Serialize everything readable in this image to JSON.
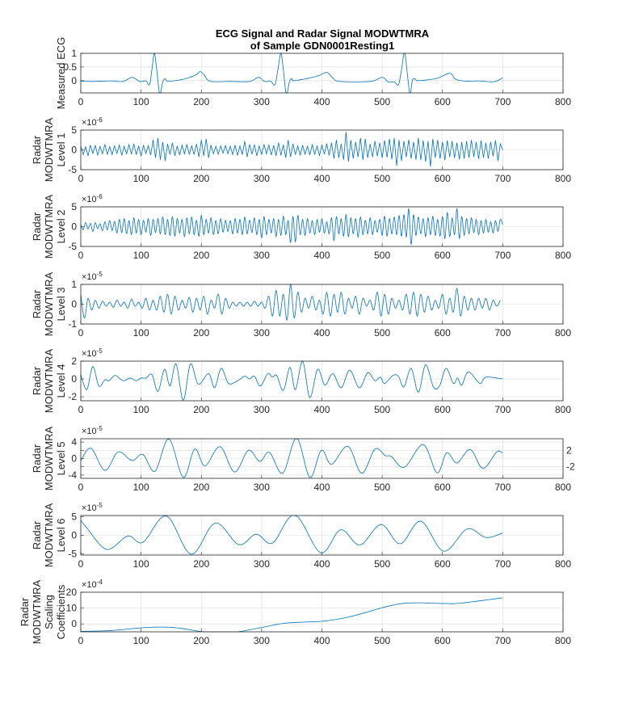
{
  "figure": {
    "title_line1": "ECG Signal and Radar Signal MODWTMRA",
    "title_line2": "of Sample GDN0001Resting1",
    "line_color": "#0072BD",
    "grid": true
  },
  "chart_data": [
    {
      "type": "line",
      "ylabel": [
        "Measured ECG"
      ],
      "exponent": null,
      "xlim": [
        0,
        800
      ],
      "xticks": [
        0,
        100,
        200,
        300,
        400,
        500,
        600,
        700,
        800
      ],
      "ylim": [
        -0.45,
        1
      ],
      "yticks": [
        0,
        0.5,
        1
      ],
      "smooth": true,
      "x": [
        0,
        20,
        50,
        70,
        85,
        98,
        108,
        114,
        118,
        122,
        126,
        131,
        136,
        140,
        145,
        170,
        190,
        198,
        205,
        215,
        250,
        280,
        295,
        305,
        315,
        322,
        327,
        332,
        336,
        341,
        346,
        350,
        355,
        390,
        408,
        418,
        430,
        480,
        500,
        510,
        520,
        527,
        532,
        537,
        541,
        546,
        550,
        554,
        560,
        590,
        612,
        622,
        640,
        660,
        685,
        700
      ],
      "y": [
        -0.02,
        -0.03,
        -0.01,
        -0.03,
        0.12,
        -0.03,
        -0.01,
        -0.15,
        0.4,
        1.0,
        0.4,
        -0.5,
        -0.05,
        0.07,
        -0.02,
        0.05,
        0.2,
        0.33,
        0.2,
        -0.02,
        -0.03,
        -0.03,
        0.12,
        -0.03,
        -0.02,
        -0.15,
        0.4,
        1.0,
        0.4,
        -0.5,
        -0.05,
        0.07,
        0.0,
        0.15,
        0.3,
        0.1,
        -0.03,
        -0.03,
        0.12,
        -0.05,
        -0.05,
        -0.15,
        0.4,
        1.05,
        0.4,
        -0.5,
        0.0,
        0.07,
        0.0,
        0.08,
        0.27,
        0.05,
        -0.02,
        -0.01,
        -0.04,
        0.1
      ]
    },
    {
      "type": "line",
      "ylabel": [
        "Radar",
        "MODWTMRA",
        "Level 1"
      ],
      "exponent": -6,
      "xlim": [
        0,
        800
      ],
      "xticks": [
        0,
        100,
        200,
        300,
        400,
        500,
        600,
        700,
        800
      ],
      "ylim": [
        -5,
        5
      ],
      "yticks": [
        -5,
        0,
        5
      ],
      "smooth": false,
      "x_start": 0,
      "x_step": 4,
      "y": [
        1.0,
        -1.2,
        0.8,
        -1.5,
        1.2,
        -0.9,
        1.1,
        -1.3,
        0.9,
        -1.0,
        1.4,
        -1.1,
        0.8,
        -1.2,
        1.0,
        -0.9,
        1.2,
        -1.4,
        0.9,
        -1.0,
        1.3,
        -1.1,
        1.5,
        -1.2,
        1.0,
        -1.6,
        1.2,
        -0.9,
        1.1,
        -1.3,
        2.5,
        -2.0,
        3.0,
        -2.5,
        2.0,
        -2.8,
        1.5,
        -1.2,
        1.8,
        -1.5,
        1.0,
        -1.3,
        1.2,
        -1.0,
        1.4,
        -1.1,
        1.0,
        -1.2,
        1.5,
        -1.8,
        2.5,
        -1.5,
        2.8,
        -2.0,
        1.2,
        -1.0,
        0.9,
        -1.1,
        1.0,
        -0.8,
        1.1,
        -1.0,
        0.9,
        -1.2,
        1.2,
        -1.4,
        1.0,
        -1.2,
        2.2,
        -1.8,
        1.4,
        -1.1,
        1.3,
        -1.5,
        1.0,
        -1.2,
        1.4,
        -1.0,
        1.2,
        -1.3,
        1.1,
        -1.5,
        1.8,
        -1.4,
        1.3,
        -2.0,
        2.5,
        -1.8,
        1.5,
        -1.2,
        1.0,
        -1.4,
        1.2,
        -1.1,
        0.9,
        -1.3,
        1.4,
        -1.2,
        1.0,
        -1.5,
        1.3,
        -1.1,
        1.6,
        -1.4,
        1.8,
        -2.2,
        2.5,
        -2.0,
        1.5,
        -2.5,
        4.5,
        -3.0,
        2.5,
        -2.2,
        2.0,
        -1.8,
        3.0,
        -2.5,
        2.8,
        -2.0,
        1.5,
        -1.8,
        2.2,
        -1.6,
        1.8,
        -2.0,
        2.4,
        -1.9,
        2.8,
        -2.4,
        3.0,
        -4.0,
        2.5,
        -2.8,
        2.2,
        -1.8,
        2.6,
        -2.2,
        2.0,
        -2.5,
        3.0,
        -2.6,
        2.4,
        -3.0,
        2.2,
        -4.2,
        2.8,
        -2.0,
        2.5,
        -2.2,
        2.0,
        -2.6,
        2.4,
        -1.8,
        2.2,
        -2.0,
        1.8,
        -2.4,
        2.0,
        -2.2,
        2.2,
        -2.0,
        2.5,
        -1.8,
        2.0,
        -2.3,
        2.4,
        -2.0,
        1.8,
        -2.2,
        2.0,
        -1.6,
        2.4,
        -2.8,
        1.5,
        0.0
      ]
    },
    {
      "type": "line",
      "ylabel": [
        "Radar",
        "MODWTMRA",
        "Level 2"
      ],
      "exponent": -6,
      "xlim": [
        0,
        800
      ],
      "xticks": [
        0,
        100,
        200,
        300,
        400,
        500,
        600,
        700,
        800
      ],
      "ylim": [
        -5,
        5
      ],
      "yticks": [
        -5,
        0,
        5
      ],
      "smooth": true,
      "x_start": 0,
      "x_step": 4,
      "y": [
        0.5,
        -0.8,
        1.0,
        -0.6,
        0.8,
        -1.2,
        1.0,
        -0.5,
        0.7,
        -1.0,
        1.2,
        -0.8,
        1.5,
        -1.0,
        1.3,
        -1.6,
        1.8,
        -1.5,
        2.0,
        -1.8,
        1.5,
        -2.0,
        2.2,
        -1.6,
        1.8,
        -2.0,
        1.6,
        -1.4,
        2.0,
        -2.2,
        1.8,
        -1.5,
        2.0,
        -1.8,
        2.4,
        -2.0,
        1.8,
        -2.2,
        2.5,
        -2.4,
        2.0,
        -1.6,
        1.8,
        -2.5,
        2.2,
        -1.8,
        2.4,
        -2.0,
        1.6,
        -2.4,
        2.8,
        -2.0,
        1.8,
        -1.6,
        2.2,
        -2.0,
        1.5,
        -1.8,
        2.0,
        -1.4,
        1.6,
        -1.2,
        1.5,
        -1.8,
        2.0,
        -1.6,
        1.8,
        -2.0,
        2.4,
        -1.8,
        1.6,
        -1.5,
        2.2,
        -2.0,
        1.8,
        -2.8,
        2.5,
        -2.0,
        1.8,
        -1.6,
        2.0,
        -2.5,
        1.8,
        -2.2,
        2.6,
        -2.0,
        1.5,
        -4.0,
        2.5,
        -3.8,
        2.8,
        -2.0,
        1.8,
        -2.2,
        2.0,
        -1.6,
        1.5,
        -2.0,
        1.8,
        -1.4,
        2.0,
        -1.6,
        1.2,
        -1.8,
        2.2,
        -3.5,
        2.5,
        -1.8,
        2.0,
        -2.4,
        3.0,
        -2.5,
        2.2,
        -1.8,
        2.0,
        -2.6,
        2.4,
        -2.0,
        1.6,
        -1.8,
        2.2,
        -2.0,
        1.5,
        -1.4,
        1.8,
        -2.2,
        2.6,
        -2.4,
        2.0,
        -1.8,
        2.4,
        -2.0,
        2.8,
        -2.4,
        3.0,
        -2.6,
        4.5,
        -4.5,
        3.0,
        -2.2,
        2.4,
        -1.8,
        2.0,
        -2.5,
        2.2,
        -2.0,
        2.6,
        -2.2,
        1.8,
        -2.4,
        2.5,
        -3.0,
        3.5,
        -2.5,
        2.2,
        -2.0,
        4.5,
        -3.0,
        2.5,
        -2.2,
        2.0,
        -1.8,
        2.2,
        -1.5,
        1.8,
        -2.0,
        1.5,
        -1.6,
        1.8,
        -1.4,
        1.2,
        -1.6,
        1.5,
        -1.2,
        1.8,
        0.5
      ]
    },
    {
      "type": "line",
      "ylabel": [
        "Radar",
        "MODWTMRA",
        "Level 3"
      ],
      "exponent": -5,
      "xlim": [
        0,
        800
      ],
      "xticks": [
        0,
        100,
        200,
        300,
        400,
        500,
        600,
        700,
        800
      ],
      "ylim": [
        -1,
        1
      ],
      "yticks": [
        -1,
        0,
        1
      ],
      "smooth": true,
      "x_start": 0,
      "x_step": 6,
      "y": [
        0.5,
        -0.7,
        0.3,
        -0.3,
        0.2,
        -0.2,
        0.15,
        -0.1,
        0.1,
        -0.15,
        0.2,
        -0.1,
        0.1,
        -0.2,
        0.25,
        -0.1,
        0.1,
        -0.2,
        0.3,
        -0.3,
        0.2,
        -0.3,
        0.4,
        -0.4,
        0.5,
        -0.5,
        0.4,
        -0.3,
        0.2,
        -0.2,
        0.35,
        -0.4,
        0.3,
        -0.3,
        0.4,
        -0.5,
        0.2,
        -0.2,
        0.5,
        -0.5,
        0.3,
        -0.2,
        0.1,
        -0.1,
        0.1,
        -0.1,
        0.1,
        -0.1,
        0.15,
        -0.1,
        0.1,
        -0.2,
        0.4,
        -0.6,
        0.7,
        -0.6,
        0.5,
        -0.8,
        1.0,
        -0.7,
        0.6,
        -0.4,
        0.3,
        -0.2,
        0.4,
        -0.3,
        0.2,
        -0.5,
        0.6,
        -0.6,
        0.5,
        -0.4,
        0.6,
        -0.5,
        0.3,
        -0.2,
        0.4,
        -0.5,
        0.3,
        -0.1,
        0.2,
        -0.3,
        0.6,
        -0.6,
        0.5,
        -0.5,
        0.3,
        -0.2,
        0.2,
        -0.3,
        0.5,
        -0.5,
        0.6,
        -0.6,
        0.5,
        -0.4,
        0.4,
        -0.3,
        0.2,
        -0.2,
        0.5,
        -0.5,
        0.3,
        -0.4,
        0.8,
        -0.6,
        0.4,
        -0.3,
        0.3,
        -0.3,
        0.3,
        -0.2,
        0.3,
        -0.3,
        0.2,
        -0.1,
        0.2,
        0.3
      ]
    },
    {
      "type": "line",
      "ylabel": [
        "Radar",
        "MODWTMRA",
        "Level 4"
      ],
      "exponent": -5,
      "xlim": [
        0,
        800
      ],
      "xticks": [
        0,
        100,
        200,
        300,
        400,
        500,
        600,
        700,
        800
      ],
      "ylim": [
        -2.45,
        2
      ],
      "yticks": [
        -2,
        0,
        2
      ],
      "smooth": true,
      "x": [
        0,
        10,
        20,
        30,
        40,
        47,
        57,
        70,
        82,
        92,
        100,
        108,
        118,
        128,
        139,
        148,
        158,
        170,
        182,
        195,
        212,
        222,
        233,
        245,
        260,
        272,
        280,
        288,
        298,
        310,
        318,
        325,
        336,
        347,
        356,
        368,
        380,
        393,
        405,
        418,
        432,
        446,
        462,
        476,
        488,
        497,
        504,
        518,
        527,
        536,
        548,
        560,
        572,
        585,
        595,
        606,
        618,
        625,
        632,
        643,
        662,
        672,
        700
      ],
      "y": [
        0.5,
        -1.2,
        1.4,
        -0.8,
        -0.1,
        -0.2,
        0.4,
        -0.2,
        0.1,
        -0.2,
        0.1,
        0.1,
        0.5,
        -1.4,
        1.1,
        -0.8,
        1.7,
        -2.4,
        1.7,
        -0.6,
        0.6,
        -1.0,
        1.2,
        -0.5,
        -0.2,
        0.3,
        0.0,
        0.3,
        -0.8,
        0.6,
        0.2,
        0.4,
        -1.3,
        1.3,
        -1.2,
        2.0,
        -2.1,
        1.1,
        -0.7,
        0.6,
        -1.0,
        1.0,
        -1.0,
        0.7,
        -0.2,
        0.2,
        -0.5,
        0.4,
        0.3,
        -0.9,
        1.2,
        -1.5,
        1.6,
        -0.9,
        -0.8,
        1.2,
        -0.5,
        0.1,
        -0.7,
        0.8,
        -0.5,
        0.2,
        0.0
      ]
    },
    {
      "type": "line",
      "ylabel": [
        "Radar",
        "MODWTMRA",
        "Level 5"
      ],
      "exponent": -5,
      "xlim": [
        0,
        800
      ],
      "xticks": [
        0,
        100,
        200,
        300,
        400,
        500,
        600,
        700,
        800
      ],
      "ylim": [
        -4.8,
        4.8
      ],
      "yticks": [
        -4,
        -2,
        0,
        2,
        4
      ],
      "smooth": true,
      "x": [
        0,
        17,
        40,
        62,
        85,
        103,
        123,
        146,
        170,
        189,
        206,
        231,
        255,
        278,
        297,
        313,
        335,
        358,
        380,
        399,
        416,
        443,
        466,
        488,
        505,
        515,
        537,
        568,
        591,
        607,
        624,
        646,
        667,
        690,
        700
      ],
      "y": [
        -0.5,
        2.5,
        -2.9,
        1.6,
        -0.5,
        1.0,
        -3.1,
        4.8,
        -4.6,
        2.3,
        -1.8,
        2.9,
        -3.3,
        2.0,
        -0.7,
        1.5,
        -3.6,
        5.0,
        -4.6,
        2.0,
        -1.4,
        3.0,
        -3.6,
        2.3,
        0.7,
        0.5,
        -2.1,
        3.4,
        -3.5,
        1.4,
        -1.1,
        2.2,
        -2.4,
        1.6,
        1.3
      ]
    },
    {
      "type": "line",
      "ylabel": [
        "Radar",
        "MODWTMRA",
        "Level 6"
      ],
      "exponent": -5,
      "xlim": [
        0,
        800
      ],
      "xticks": [
        0,
        100,
        200,
        300,
        400,
        500,
        600,
        700,
        800
      ],
      "ylim": [
        -5.3,
        5.3
      ],
      "yticks": [
        -5,
        0,
        5
      ],
      "smooth": true,
      "x": [
        0,
        10,
        43,
        78,
        103,
        142,
        183,
        223,
        262,
        291,
        318,
        355,
        398,
        431,
        463,
        498,
        530,
        564,
        602,
        641,
        672,
        700
      ],
      "y": [
        4.0,
        2.0,
        -3.8,
        -0.2,
        -1.9,
        5.2,
        -5.1,
        3.3,
        -2.5,
        0.3,
        -2.1,
        5.5,
        -4.7,
        1.5,
        -2.6,
        2.9,
        -2.3,
        3.8,
        -4.3,
        1.7,
        -0.6,
        0.6
      ]
    },
    {
      "type": "line",
      "ylabel": [
        "Radar",
        "MODWTMRA",
        "Scaling",
        "Coefficients"
      ],
      "exponent": -4,
      "xlim": [
        0,
        800
      ],
      "xticks": [
        0,
        100,
        200,
        300,
        400,
        500,
        600,
        700,
        800
      ],
      "ylim": [
        -5,
        20
      ],
      "yticks": [
        0,
        10,
        20
      ],
      "smooth": true,
      "x": [
        0,
        50,
        100,
        130,
        160,
        200,
        230,
        260,
        300,
        340,
        400,
        440,
        480,
        500,
        530,
        560,
        600,
        630,
        700
      ],
      "y": [
        -4.7,
        -4.2,
        -2.5,
        -2.0,
        -2.5,
        -4.8,
        -5.4,
        -5.0,
        -2.3,
        0.5,
        1.7,
        4.0,
        8.0,
        10.2,
        12.7,
        13.3,
        12.9,
        13.1,
        16.5
      ]
    }
  ]
}
